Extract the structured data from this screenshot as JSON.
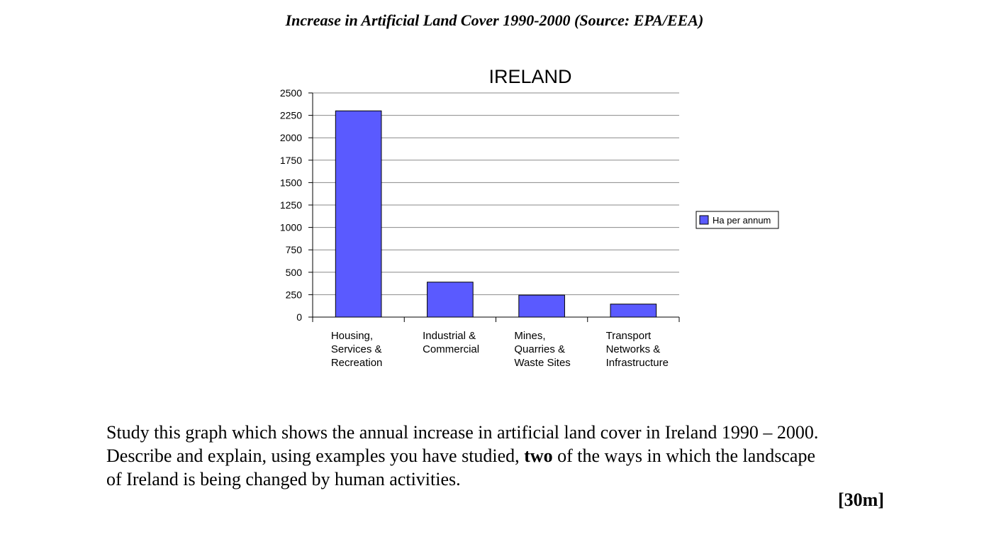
{
  "page": {
    "heading": "Increase in Artificial Land Cover 1990-2000 (Source: EPA/EEA)",
    "question": {
      "line1": "Study this graph which shows the annual increase in artificial land cover in Ireland 1990 – 2000.",
      "line2_before": "Describe and explain, using examples you have studied, ",
      "line2_bold": "two",
      "line2_after": " of the ways in which the landscape",
      "line3": "of Ireland is being changed by human activities."
    },
    "marks": "[30m]"
  },
  "chart_data": {
    "type": "bar",
    "title": "IRELAND",
    "xlabel": "",
    "ylabel": "",
    "categories": [
      [
        "Housing,",
        "Services &",
        "Recreation"
      ],
      [
        "Industrial &",
        "Commercial"
      ],
      [
        "Mines,",
        "Quarries &",
        "Waste Sites"
      ],
      [
        "Transport",
        "Networks &",
        "Infrastructure"
      ]
    ],
    "series": [
      {
        "name": "Ha per annum",
        "values": [
          2300,
          390,
          245,
          145
        ],
        "color": "#5a5aff"
      }
    ],
    "yticks": [
      0,
      250,
      500,
      750,
      1000,
      1250,
      1500,
      1750,
      2000,
      2250,
      2500
    ],
    "ylim": [
      0,
      2500
    ],
    "grid": true,
    "legend_position": "right"
  }
}
